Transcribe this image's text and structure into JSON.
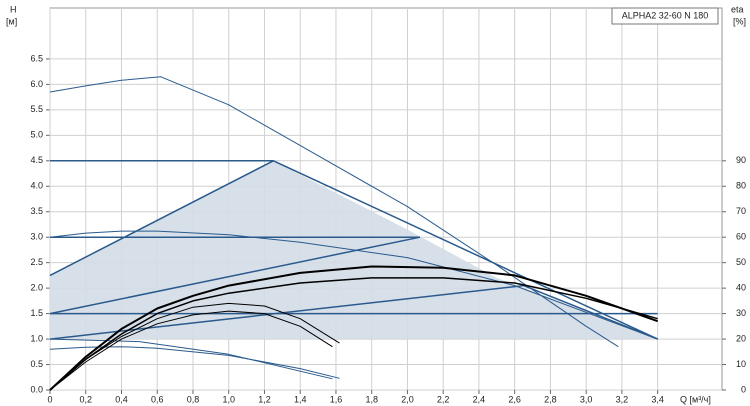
{
  "chart_data": {
    "type": "line",
    "legend_box": "ALPHA2 32-60 N 180",
    "ylabel": "H",
    "ylabel_unit": "[м]",
    "y2label": "eta",
    "y2label_unit": "[%]",
    "xlabel": "Q [м³/ч]",
    "grid": true,
    "xlim": [
      0,
      3.76
    ],
    "xticks": [
      0,
      {
        "value": 0.2,
        "label": "0,2"
      },
      {
        "value": 0.4,
        "label": "0,4"
      },
      {
        "value": 0.6,
        "label": "0,6"
      },
      {
        "value": 0.8,
        "label": "0,8"
      },
      {
        "value": 1.0,
        "label": "1,0"
      },
      {
        "value": 1.2,
        "label": "1,2"
      },
      {
        "value": 1.4,
        "label": "1,4"
      },
      {
        "value": 1.6,
        "label": "1,6"
      },
      {
        "value": 1.8,
        "label": "1,8"
      },
      {
        "value": 2.0,
        "label": "2,0"
      },
      {
        "value": 2.2,
        "label": "2,2"
      },
      {
        "value": 2.4,
        "label": "2,4"
      },
      {
        "value": 2.6,
        "label": "2,6"
      },
      {
        "value": 2.8,
        "label": "2,8"
      },
      {
        "value": 3.0,
        "label": "3,0"
      },
      {
        "value": 3.2,
        "label": "3,2"
      },
      {
        "value": 3.4,
        "label": "3,4"
      }
    ],
    "ylim": [
      0,
      7.5
    ],
    "yticks": [
      {
        "value": 0,
        "label": "0.0"
      },
      0.5,
      {
        "value": 1,
        "label": "1.0"
      },
      1.5,
      {
        "value": 2,
        "label": "2.0"
      },
      2.5,
      {
        "value": 3,
        "label": "3.0"
      },
      3.5,
      {
        "value": 4,
        "label": "4.0"
      },
      4.5,
      {
        "value": 5,
        "label": "5.0"
      },
      5.5,
      {
        "value": 6,
        "label": "6.0"
      },
      6.5
    ],
    "y2lim": [
      0,
      150
    ],
    "y2ticks": [
      0,
      10,
      20,
      30,
      40,
      50,
      60,
      70,
      80,
      90
    ],
    "series": [
      {
        "kind": "area",
        "color": "#d3dce7",
        "x": [
          0,
          0,
          1.25,
          1.5,
          2.0,
          2.5,
          3.0,
          3.4
        ],
        "values": [
          1.0,
          2.25,
          4.5,
          4.05,
          3.15,
          2.2,
          1.55,
          1.0
        ]
      },
      {
        "color": "#2a5a8c",
        "width": 1,
        "x": [
          0,
          0.2,
          0.4,
          0.62,
          1.0,
          1.5,
          2.0,
          2.5,
          3.0,
          3.18
        ],
        "values": [
          5.85,
          5.97,
          6.08,
          6.15,
          5.6,
          4.6,
          3.6,
          2.45,
          1.25,
          0.85
        ]
      },
      {
        "color": "#2a5a8c",
        "width": 1.5,
        "x": [
          0,
          1.25
        ],
        "values": [
          4.5,
          4.5
        ]
      },
      {
        "color": "#2a5a8c",
        "width": 1.5,
        "x": [
          0,
          2.07
        ],
        "values": [
          3.0,
          3.0
        ]
      },
      {
        "color": "#2a5a8c",
        "width": 1.5,
        "x": [
          0,
          3.4
        ],
        "values": [
          1.5,
          1.5
        ]
      },
      {
        "color": "#2a5a8c",
        "width": 1.5,
        "x": [
          0,
          1.25,
          3.4
        ],
        "values": [
          2.25,
          4.5,
          1.0
        ]
      },
      {
        "color": "#2a5a8c",
        "width": 1.5,
        "x": [
          0,
          2.07
        ],
        "values": [
          1.5,
          3.0
        ]
      },
      {
        "color": "#2a5a8c",
        "width": 1.5,
        "x": [
          0,
          2.65,
          3.4
        ],
        "values": [
          1.0,
          2.05,
          1.0
        ]
      },
      {
        "color": "#2a5a8c",
        "width": 1,
        "x": [
          0,
          0.2,
          0.4,
          0.6,
          1.0,
          1.4,
          2.0,
          2.6,
          3.4
        ],
        "values": [
          3.0,
          3.08,
          3.12,
          3.12,
          3.05,
          2.9,
          2.6,
          2.05,
          1.0
        ]
      },
      {
        "color": "#2a5a8c",
        "width": 1,
        "x": [
          0,
          0.2,
          0.4,
          0.6,
          1.0,
          1.4,
          1.62
        ],
        "values": [
          0.8,
          0.84,
          0.85,
          0.82,
          0.68,
          0.42,
          0.23
        ]
      },
      {
        "color": "#2a5a8c",
        "width": 1,
        "x": [
          0,
          0.5,
          1.0,
          1.58
        ],
        "values": [
          1.0,
          0.95,
          0.7,
          0.22
        ]
      },
      {
        "axis": "y2",
        "color": "#000000",
        "width": 2,
        "x": [
          0,
          0.2,
          0.4,
          0.6,
          0.8,
          1.0,
          1.4,
          1.8,
          2.2,
          2.6,
          3.0,
          3.4
        ],
        "values": [
          0,
          13,
          24,
          32,
          37,
          41,
          46,
          48.5,
          48,
          45,
          37,
          27
        ]
      },
      {
        "axis": "y2",
        "color": "#000000",
        "width": 1.5,
        "x": [
          0,
          0.2,
          0.4,
          0.6,
          0.8,
          1.0,
          1.4,
          1.8,
          2.2,
          2.6,
          3.0,
          3.4
        ],
        "values": [
          0,
          12,
          22,
          30,
          35,
          38,
          42,
          44,
          44,
          42,
          36,
          28
        ]
      },
      {
        "axis": "y2",
        "color": "#000000",
        "width": 1,
        "x": [
          0,
          0.2,
          0.4,
          0.6,
          0.8,
          1.0,
          1.2,
          1.4,
          1.62
        ],
        "values": [
          0,
          12,
          21,
          28,
          32.5,
          34,
          33,
          28,
          18.4
        ]
      },
      {
        "axis": "y2",
        "color": "#000000",
        "width": 1,
        "x": [
          0,
          0.2,
          0.4,
          0.6,
          0.8,
          1.0,
          1.2,
          1.4,
          1.58
        ],
        "values": [
          0,
          11,
          20,
          26,
          29.5,
          31,
          30,
          25,
          17
        ]
      }
    ]
  }
}
